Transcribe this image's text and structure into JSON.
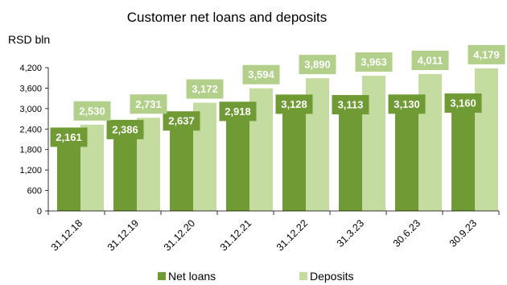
{
  "chart_data": {
    "type": "bar",
    "title": "Customer net loans and deposits",
    "ylabel": "RSD bln",
    "categories": [
      "31.12.18",
      "31.12.19",
      "31.12.20",
      "31.12.21",
      "31.12.22",
      "31.3.23",
      "30.6.23",
      "30.9.23"
    ],
    "series": [
      {
        "name": "Net loans",
        "values": [
          2161,
          2386,
          2637,
          2918,
          3128,
          3113,
          3130,
          3160
        ],
        "labels": [
          "2,161",
          "2,386",
          "2,637",
          "2,918",
          "3,128",
          "3,113",
          "3,130",
          "3,160"
        ],
        "color": "#6f9a34",
        "label_color": "#6f9a34"
      },
      {
        "name": "Deposits",
        "values": [
          2530,
          2731,
          3172,
          3594,
          3890,
          3963,
          4011,
          4179
        ],
        "labels": [
          "2,530",
          "2,731",
          "3,172",
          "3,594",
          "3,890",
          "3,963",
          "4,011",
          "4,179"
        ],
        "color": "#c5dca0",
        "label_color": "#b2d08a"
      }
    ],
    "yticks": [
      "0",
      "600",
      "1,200",
      "1,800",
      "2,400",
      "3,000",
      "3,600",
      "4,200"
    ],
    "ylim": [
      0,
      4200
    ],
    "grid": false,
    "legend_position": "bottom"
  }
}
